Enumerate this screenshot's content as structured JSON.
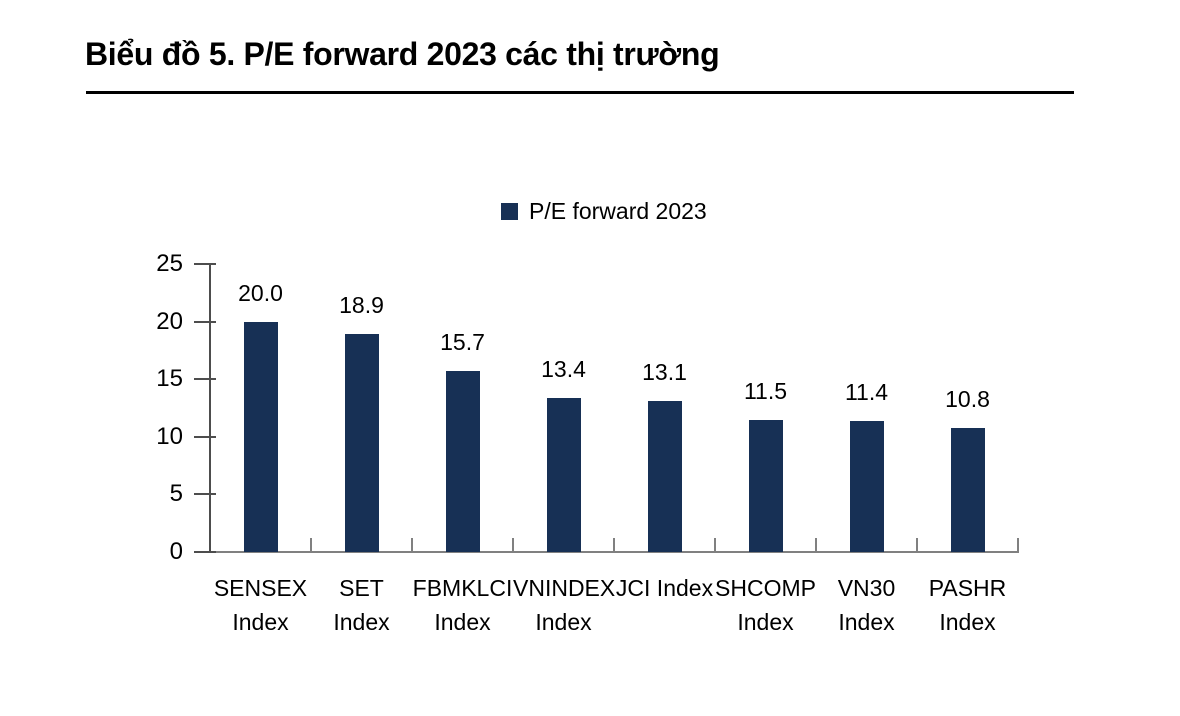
{
  "page": {
    "title": "Biểu đồ 5. P/E forward 2023 các thị trường"
  },
  "legend": {
    "label": "P/E forward 2023"
  },
  "colors": {
    "bar": "#173055",
    "title_rule": "#000000",
    "y_axis": "#4d4d4d",
    "x_axis": "#808080",
    "text": "#000000"
  },
  "chart_data": {
    "type": "bar",
    "title": "Biểu đồ 5. P/E forward 2023 các thị trường",
    "legend": [
      "P/E forward 2023"
    ],
    "legend_position": "top-center",
    "categories": [
      "SENSEX Index",
      "SET Index",
      "FBMKLCI Index",
      "VNINDEX Index",
      "JCI Index",
      "SHCOMP Index",
      "VN30 Index",
      "PASHR Index"
    ],
    "category_lines": [
      [
        "SENSEX",
        "Index"
      ],
      [
        "SET",
        "Index"
      ],
      [
        "FBMKLCI",
        "Index"
      ],
      [
        "VNINDEX",
        "Index"
      ],
      [
        "JCI Index"
      ],
      [
        "SHCOMP",
        "Index"
      ],
      [
        "VN30",
        "Index"
      ],
      [
        "PASHR",
        "Index"
      ]
    ],
    "values": [
      20.0,
      18.9,
      15.7,
      13.4,
      13.1,
      11.5,
      11.4,
      10.8
    ],
    "value_labels": [
      "20.0",
      "18.9",
      "15.7",
      "13.4",
      "13.1",
      "11.5",
      "11.4",
      "10.8"
    ],
    "xlabel": "",
    "ylabel": "",
    "ylim": [
      0,
      25
    ],
    "yticks": [
      0,
      5,
      10,
      15,
      20,
      25
    ],
    "grid": false
  }
}
